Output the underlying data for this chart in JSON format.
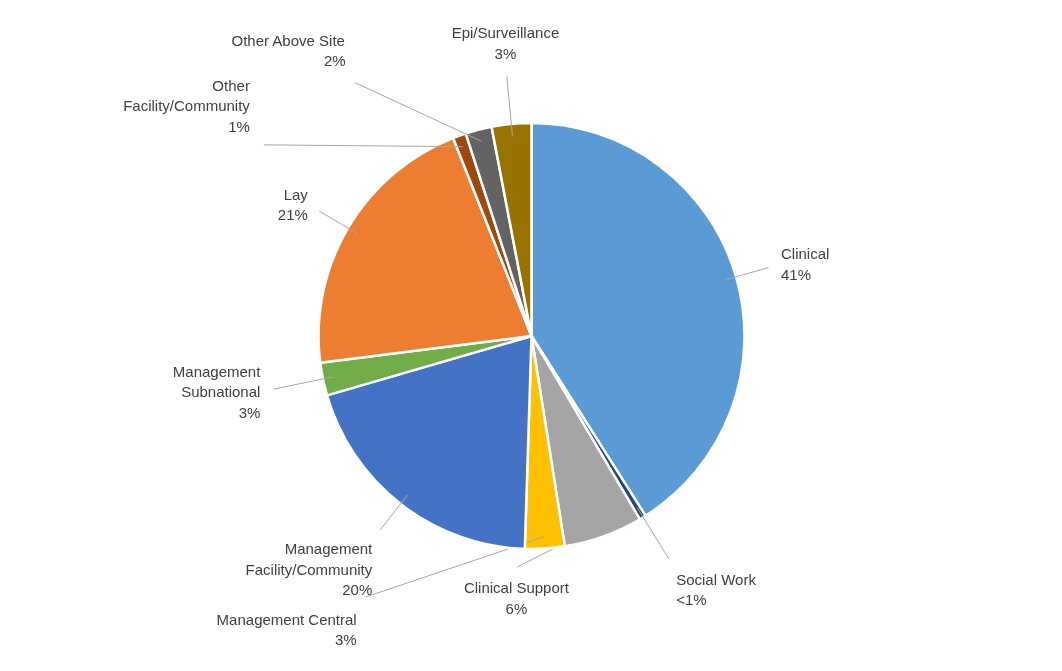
{
  "chart_data": {
    "type": "pie",
    "categories": [
      "Clinical",
      "Social Work",
      "Clinical Support",
      "Management Central",
      "Management\nFacility/Community",
      "Management\nSubnational",
      "Lay",
      "Other\nFacility/Community",
      "Other Above Site",
      "Epi/Surveillance"
    ],
    "values": [
      41,
      0.5,
      6,
      3,
      20,
      2.5,
      21,
      1,
      2,
      3
    ],
    "value_labels": [
      "41%",
      "<1%",
      "6%",
      "3%",
      "20%",
      "3%",
      "21%",
      "1%",
      "2%",
      "3%"
    ],
    "colors": [
      "#5b9bd5",
      "#264478",
      "#a5a5a5",
      "#ffc000",
      "#4472c4",
      "#70ad47",
      "#ed7d31",
      "#9e480e",
      "#636363",
      "#997300"
    ]
  }
}
